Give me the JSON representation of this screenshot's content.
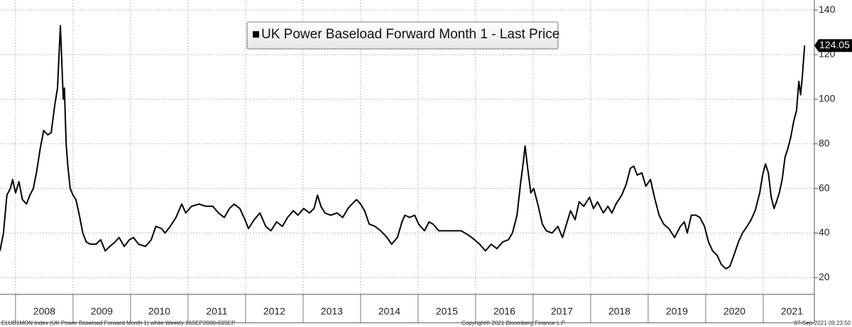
{
  "chart_data": {
    "type": "line",
    "series": [
      {
        "name": "UK Power Baseload Forward Month 1 - Last Price",
        "color": "#000000",
        "values": [
          32,
          40,
          57,
          60,
          64,
          58,
          63,
          55,
          53,
          57,
          60,
          68,
          78,
          86,
          84,
          85,
          97,
          105,
          133,
          120,
          100,
          105,
          80,
          70,
          60,
          57,
          55,
          48,
          40,
          36,
          35,
          35,
          37,
          32,
          34,
          36,
          38,
          34,
          37,
          38,
          35,
          34,
          37,
          43,
          42,
          40,
          43,
          47,
          53,
          49,
          52,
          53,
          52,
          52,
          49,
          47,
          51,
          53,
          51,
          46,
          42,
          46,
          49,
          43,
          41,
          45,
          43,
          47,
          50,
          48,
          51,
          49,
          51,
          57,
          52,
          49,
          48,
          49,
          47,
          51,
          53,
          55,
          53,
          50,
          44,
          43,
          41,
          38,
          35,
          38,
          45,
          48,
          47,
          48,
          44,
          41,
          45,
          44,
          41,
          41,
          41,
          41,
          39,
          37,
          35,
          32,
          35,
          33,
          36,
          37,
          40,
          48,
          62,
          72,
          79,
          68,
          58,
          60,
          52,
          44,
          41,
          40,
          43,
          38,
          44,
          50,
          46,
          54,
          52,
          56,
          51,
          54,
          49,
          52,
          49,
          53,
          57,
          62,
          69,
          70,
          66,
          67,
          61,
          64,
          56,
          48,
          44,
          42,
          38,
          43,
          45,
          40,
          48,
          48,
          47,
          43,
          36,
          32,
          30,
          26,
          24,
          25,
          30,
          36,
          40,
          43,
          46,
          50,
          58,
          66,
          71,
          67,
          56,
          51,
          54,
          58,
          64,
          74,
          78,
          83,
          90,
          95,
          108,
          102,
          110,
          124.05
        ]
      }
    ],
    "x": [
      2007.73,
      2007.79,
      2007.85,
      2007.91,
      2007.95,
      2008.0,
      2008.06,
      2008.12,
      2008.19,
      2008.25,
      2008.31,
      2008.37,
      2008.43,
      2008.49,
      2008.56,
      2008.62,
      2008.68,
      2008.73,
      2008.78,
      2008.8,
      2008.83,
      2008.85,
      2008.88,
      2008.91,
      2008.95,
      2009.0,
      2009.05,
      2009.11,
      2009.17,
      2009.23,
      2009.3,
      2009.4,
      2009.48,
      2009.56,
      2009.64,
      2009.73,
      2009.8,
      2009.89,
      2009.98,
      2010.05,
      2010.14,
      2010.26,
      2010.36,
      2010.44,
      2010.54,
      2010.6,
      2010.69,
      2010.79,
      2010.89,
      2010.96,
      2011.06,
      2011.19,
      2011.31,
      2011.43,
      2011.53,
      2011.63,
      2011.72,
      2011.8,
      2011.9,
      2011.99,
      2012.05,
      2012.15,
      2012.25,
      2012.35,
      2012.44,
      2012.54,
      2012.64,
      2012.73,
      2012.83,
      2012.91,
      2013.01,
      2013.11,
      2013.19,
      2013.25,
      2013.31,
      2013.38,
      2013.48,
      2013.59,
      2013.69,
      2013.78,
      2013.85,
      2013.93,
      2014.0,
      2014.07,
      2014.15,
      2014.25,
      2014.35,
      2014.46,
      2014.54,
      2014.64,
      2014.72,
      2014.77,
      2014.85,
      2014.94,
      2015.01,
      2015.11,
      2015.19,
      2015.26,
      2015.36,
      2015.51,
      2015.63,
      2015.75,
      2015.88,
      2015.98,
      2016.07,
      2016.17,
      2016.27,
      2016.37,
      2016.47,
      2016.57,
      2016.64,
      2016.72,
      2016.78,
      2016.83,
      2016.86,
      2016.91,
      2016.96,
      2017.01,
      2017.09,
      2017.16,
      2017.23,
      2017.33,
      2017.43,
      2017.51,
      2017.58,
      2017.65,
      2017.73,
      2017.8,
      2017.88,
      2017.98,
      2018.05,
      2018.12,
      2018.22,
      2018.3,
      2018.37,
      2018.44,
      2018.54,
      2018.62,
      2018.69,
      2018.75,
      2018.81,
      2018.89,
      2018.96,
      2019.04,
      2019.11,
      2019.19,
      2019.27,
      2019.36,
      2019.46,
      2019.56,
      2019.63,
      2019.68,
      2019.75,
      2019.83,
      2019.9,
      2019.98,
      2020.05,
      2020.12,
      2020.2,
      2020.27,
      2020.35,
      2020.42,
      2020.49,
      2020.57,
      2020.64,
      2020.72,
      2020.79,
      2020.86,
      2020.94,
      2020.99,
      2021.04,
      2021.09,
      2021.14,
      2021.19,
      2021.23,
      2021.28,
      2021.33,
      2021.38,
      2021.43,
      2021.48,
      2021.53,
      2021.58,
      2021.62,
      2021.65,
      2021.68,
      2021.72
    ],
    "xlim": [
      2007.73,
      2021.89
    ],
    "xticks": [
      {
        "value": 2008,
        "label": "2008"
      },
      {
        "value": 2009,
        "label": "2009"
      },
      {
        "value": 2010,
        "label": "2010"
      },
      {
        "value": 2011,
        "label": "2011"
      },
      {
        "value": 2012,
        "label": "2012"
      },
      {
        "value": 2013,
        "label": "2013"
      },
      {
        "value": 2014,
        "label": "2014"
      },
      {
        "value": 2015,
        "label": "2015"
      },
      {
        "value": 2016,
        "label": "2016"
      },
      {
        "value": 2017,
        "label": "2017"
      },
      {
        "value": 2018,
        "label": "2018"
      },
      {
        "value": 2019,
        "label": "2019"
      },
      {
        "value": 2020,
        "label": "2020"
      },
      {
        "value": 2021,
        "label": "2021"
      }
    ],
    "ylim": [
      12.5,
      144.5
    ],
    "yticks": [
      20,
      40,
      60,
      80,
      100,
      120,
      140
    ],
    "grid": true,
    "legend": "top",
    "footer": {
      "left": "ELUB1MON Index (UK Power Baseload Forward Month 1) white  Weekly 16SEP2000-03SEP",
      "center": "Copyright© 2021 Bloomberg Finance L.P.",
      "right": "07-Sep-2021 09:23:50"
    }
  }
}
